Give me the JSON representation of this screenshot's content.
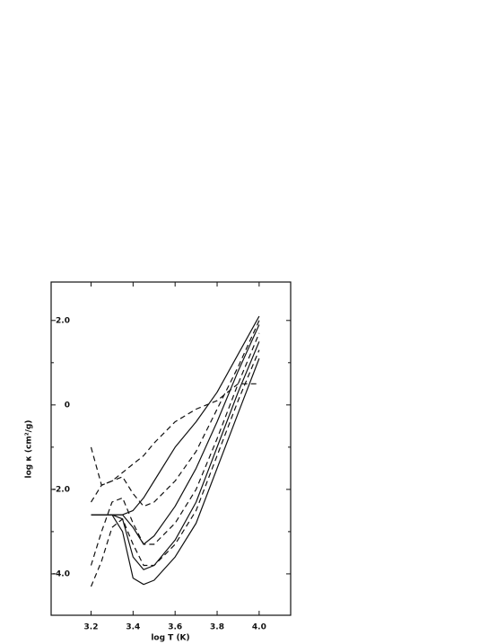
{
  "chart_data": {
    "type": "line",
    "xlabel": "log T (K)",
    "ylabel": "log κ (cm²/g)",
    "x": [
      3.2,
      3.25,
      3.3,
      3.35,
      3.4,
      3.45,
      3.5,
      3.6,
      3.7,
      3.8,
      3.9,
      4.0
    ],
    "series": [
      {
        "color": "#111111",
        "dashed": false,
        "values": [
          -2.6,
          -2.6,
          -2.6,
          -3.0,
          -4.1,
          -4.25,
          -4.15,
          -3.6,
          -2.8,
          -1.5,
          -0.2,
          1.1
        ]
      },
      {
        "color": "#111111",
        "dashed": true,
        "values": [
          -4.3,
          -3.7,
          -2.9,
          -2.7,
          -3.3,
          -3.8,
          -3.8,
          -3.3,
          -2.5,
          -1.2,
          0.1,
          1.3
        ]
      },
      {
        "color": "#111111",
        "dashed": false,
        "values": [
          -2.6,
          -2.6,
          -2.6,
          -2.7,
          -3.6,
          -3.9,
          -3.8,
          -3.2,
          -2.3,
          -1.0,
          0.3,
          1.5
        ]
      },
      {
        "color": "#111111",
        "dashed": true,
        "values": [
          -3.8,
          -3.0,
          -2.3,
          -2.2,
          -2.8,
          -3.3,
          -3.3,
          -2.8,
          -2.0,
          -0.8,
          0.5,
          1.7
        ]
      },
      {
        "color": "#111111",
        "dashed": false,
        "values": [
          -2.6,
          -2.6,
          -2.6,
          -2.6,
          -2.9,
          -3.3,
          -3.1,
          -2.4,
          -1.5,
          -0.4,
          0.8,
          1.9
        ]
      },
      {
        "color": "#111111",
        "dashed": true,
        "values": [
          -2.3,
          -1.9,
          -1.8,
          -1.7,
          -2.1,
          -2.4,
          -2.3,
          -1.8,
          -1.1,
          -0.1,
          0.9,
          2.0
        ]
      },
      {
        "color": "#111111",
        "dashed": false,
        "values": [
          -2.6,
          -2.6,
          -2.6,
          -2.6,
          -2.5,
          -2.2,
          -1.8,
          -1.0,
          -0.4,
          0.3,
          1.2,
          2.1
        ]
      },
      {
        "color": "#111111",
        "dashed": true,
        "values": [
          -1.0,
          -1.9,
          -1.8,
          -1.6,
          -1.4,
          -1.2,
          -0.9,
          -0.4,
          -0.1,
          0.1,
          0.5,
          0.5
        ]
      }
    ],
    "xlim": [
      3.01,
      4.15
    ],
    "ylim": [
      -4.98,
      2.91
    ],
    "xticks": [
      3.2,
      3.4,
      3.6,
      3.8,
      {
        "value": 4,
        "label": "4.0"
      }
    ],
    "yticks": [
      {
        "value": 2,
        "label": "2.0"
      },
      0,
      {
        "value": -2,
        "label": "-2.0"
      },
      {
        "value": -4,
        "label": "-4.0"
      }
    ],
    "yticks_minor": [
      1,
      -1,
      -3
    ],
    "grid": false
  }
}
